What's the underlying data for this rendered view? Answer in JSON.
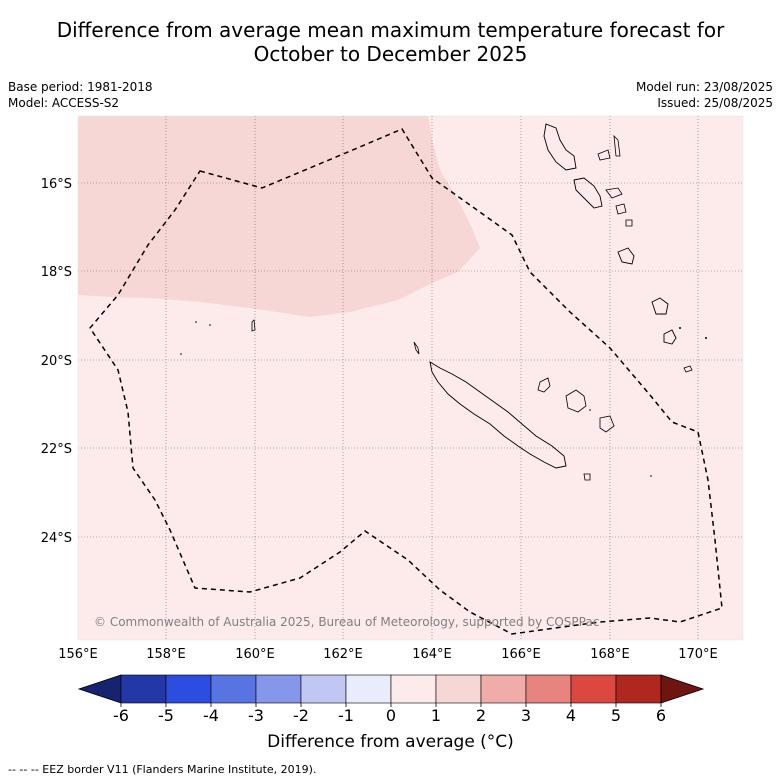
{
  "title": {
    "line1": "Difference from average mean maximum temperature forecast for",
    "line2": "October to December 2025"
  },
  "meta": {
    "base_period": "Base period: 1981-2018",
    "model": "Model: ACCESS-S2",
    "model_run": "Model run: 23/08/2025",
    "issued": "Issued: 25/08/2025"
  },
  "map": {
    "lat_ticks": [
      "16°S",
      "18°S",
      "20°S",
      "22°S",
      "24°S"
    ],
    "lon_ticks": [
      "156°E",
      "158°E",
      "160°E",
      "162°E",
      "164°E",
      "166°E",
      "168°E",
      "170°E"
    ],
    "copyright": "© Commonwealth of Australia 2025, Bureau of Meteorology, supported by COSPPac",
    "anomaly_regions": [
      {
        "range": "1 to 2",
        "color": "#f6d7d5",
        "area": "northwest"
      },
      {
        "range": "0 to 1",
        "color": "#fcebea",
        "area": "remainder"
      }
    ]
  },
  "colorbar": {
    "label": "Difference from average (°C)",
    "ticks": [
      "-6",
      "-5",
      "-4",
      "-3",
      "-2",
      "-1",
      "0",
      "1",
      "2",
      "3",
      "4",
      "5",
      "6"
    ],
    "colors": [
      "#16236e",
      "#2338a8",
      "#2c4ee0",
      "#5874e3",
      "#8497eb",
      "#c0c7f3",
      "#e8ecfb",
      "#fcebea",
      "#f6d7d5",
      "#efaca8",
      "#e8847e",
      "#dc4840",
      "#b02720",
      "#6e1510"
    ]
  },
  "footer": {
    "legend_text": "--  --  -- EEZ border V11 (Flanders Marine Institute, 2019)."
  }
}
